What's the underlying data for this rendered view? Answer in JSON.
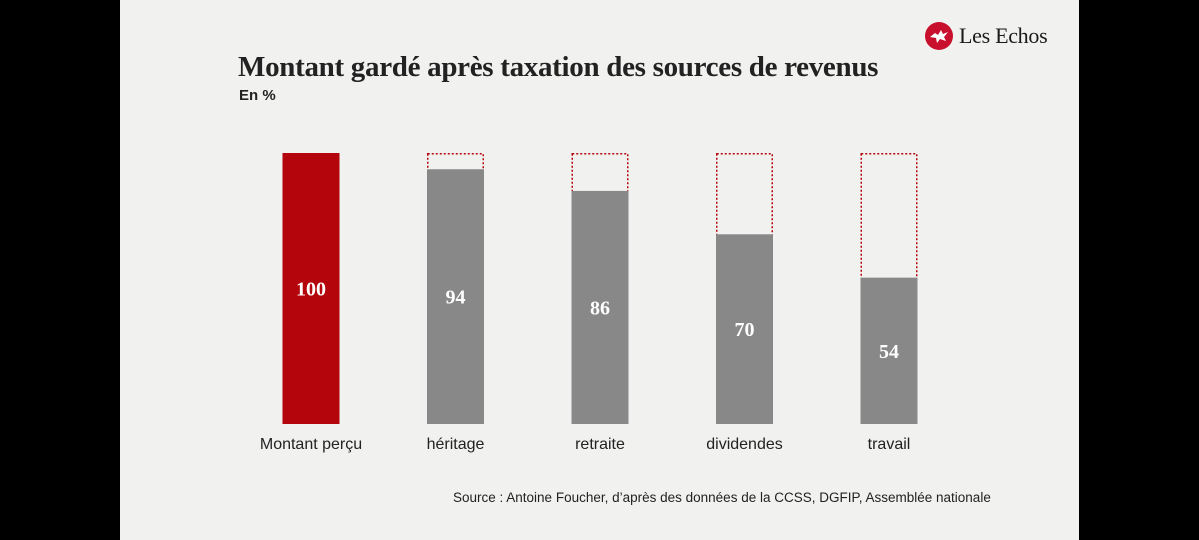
{
  "brand": {
    "name": "Les Echos",
    "accent": "#c8102e"
  },
  "title": "Montant gardé après taxation des sources de revenus",
  "subtitle": "En %",
  "source": "Source : Antoine Foucher, d’après des données de la CCSS, DGFIP, Assemblée nationale",
  "chart_data": {
    "type": "bar",
    "title": "Montant gardé après taxation des sources de revenus",
    "subtitle": "En %",
    "categories": [
      "Montant perçu",
      "héritage",
      "retraite",
      "dividendes",
      "travail"
    ],
    "values": [
      100,
      94,
      86,
      70,
      54
    ],
    "data_labels": [
      "100",
      "94",
      "86",
      "70",
      "54"
    ],
    "reference_value": 100,
    "ylim": [
      0,
      100
    ],
    "grid": false,
    "legend": "none",
    "colors": {
      "reference_bar": "#b3050b",
      "bars": "#888888",
      "remainder_outline": "#b3050b",
      "label_text": "#ffffff"
    }
  }
}
